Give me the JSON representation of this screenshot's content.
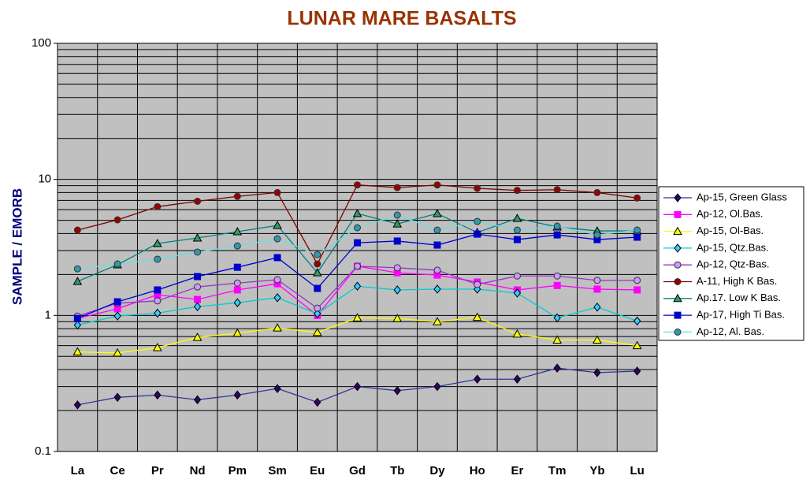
{
  "chart_data": {
    "type": "line",
    "title": "LUNAR MARE BASALTS",
    "y_label": "SAMPLE / EMORB",
    "categories": [
      "La",
      "Ce",
      "Pr",
      "Nd",
      "Pm",
      "Sm",
      "Eu",
      "Gd",
      "Tb",
      "Dy",
      "Ho",
      "Er",
      "Tm",
      "Yb",
      "Lu"
    ],
    "y_scale": "log",
    "ylim": [
      0.1,
      100
    ],
    "yticks": [
      0.1,
      1,
      10,
      100
    ],
    "grid": true,
    "minor_grid": true,
    "legend_position": "right",
    "plot_background": "#c0c0c0",
    "series": [
      {
        "name": "Ap-15, Green Glass",
        "color": "#333399",
        "marker": "diamond",
        "marker_color": "#330066",
        "values": [
          0.22,
          0.25,
          0.26,
          0.24,
          0.26,
          0.29,
          0.23,
          0.3,
          0.28,
          0.3,
          0.34,
          0.34,
          0.41,
          0.38,
          0.39
        ]
      },
      {
        "name": "Ap-12, Ol.Bas.",
        "color": "#ff00ff",
        "marker": "square",
        "marker_color": "#ff00ff",
        "values": [
          0.95,
          1.12,
          1.42,
          1.31,
          1.54,
          1.71,
          1.0,
          2.3,
          2.06,
          1.98,
          1.76,
          1.54,
          1.66,
          1.56,
          1.54
        ]
      },
      {
        "name": "Ap-15, Ol-Bas.",
        "color": "#ffff00",
        "marker": "triangle",
        "marker_color": "#ffff00",
        "values": [
          0.54,
          0.53,
          0.58,
          0.69,
          0.74,
          0.81,
          0.75,
          0.96,
          0.95,
          0.9,
          0.97,
          0.73,
          0.66,
          0.66,
          0.6
        ]
      },
      {
        "name": "Ap-15, Qtz.Bas.",
        "color": "#00cccc",
        "marker": "diamond",
        "marker_color": "#33ccff",
        "values": [
          0.85,
          0.99,
          1.04,
          1.16,
          1.24,
          1.35,
          1.03,
          1.64,
          1.54,
          1.56,
          1.56,
          1.46,
          0.96,
          1.15,
          0.91
        ]
      },
      {
        "name": "Ap-12, Qtz-Bas.",
        "color": "#9933cc",
        "marker": "circle",
        "marker_color": "#cc99ff",
        "values": [
          0.99,
          1.23,
          1.28,
          1.62,
          1.73,
          1.83,
          1.13,
          2.3,
          2.24,
          2.15,
          1.69,
          1.95,
          1.95,
          1.81,
          1.81
        ]
      },
      {
        "name": "A-11, High K Bas.",
        "color": "#800000",
        "marker": "circle",
        "marker_color": "#990000",
        "values": [
          4.24,
          5.04,
          6.3,
          6.9,
          7.5,
          8.0,
          2.39,
          9.1,
          8.7,
          9.1,
          8.6,
          8.3,
          8.4,
          8.0,
          7.3
        ]
      },
      {
        "name": "Ap.17. Low K Bas.",
        "color": "#008080",
        "marker": "triangle",
        "marker_color": "#339966",
        "values": [
          1.78,
          2.36,
          3.38,
          3.71,
          4.13,
          4.59,
          2.06,
          5.61,
          4.71,
          5.61,
          4.07,
          5.17,
          4.47,
          4.18,
          4.18
        ]
      },
      {
        "name": "Ap-17, High Ti Bas.",
        "color": "#0000cc",
        "marker": "square",
        "marker_color": "#0000cc",
        "values": [
          0.95,
          1.26,
          1.54,
          1.93,
          2.26,
          2.66,
          1.58,
          3.42,
          3.52,
          3.29,
          3.96,
          3.61,
          3.91,
          3.61,
          3.76
        ]
      },
      {
        "name": "Ap-12, Al. Bas.",
        "color": "#66e0e0",
        "marker": "circle",
        "marker_color": "#3399aa",
        "values": [
          2.2,
          2.39,
          2.59,
          2.92,
          3.24,
          3.66,
          2.8,
          4.41,
          5.46,
          4.24,
          4.91,
          4.24,
          4.53,
          3.91,
          4.24
        ]
      }
    ]
  }
}
